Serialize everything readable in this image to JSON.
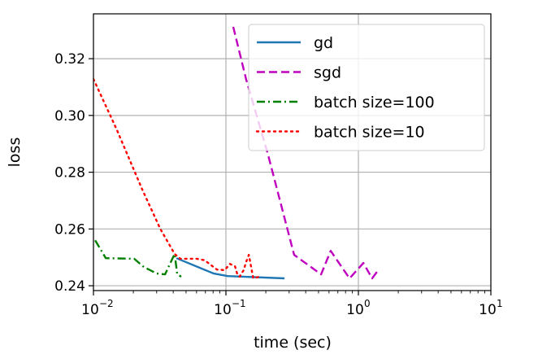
{
  "chart_data": {
    "type": "line",
    "title": "",
    "xlabel": "time (sec)",
    "ylabel": "loss",
    "xscale": "log",
    "xlim": [
      0.01,
      10
    ],
    "ylim": [
      0.2383,
      0.3358
    ],
    "grid": true,
    "legend_position": "top-right",
    "xticks": [
      {
        "value": 0.01,
        "base": "10",
        "exp": "−2"
      },
      {
        "value": 0.1,
        "base": "10",
        "exp": "−1"
      },
      {
        "value": 1,
        "base": "10",
        "exp": "0"
      },
      {
        "value": 10,
        "base": "10",
        "exp": "1"
      }
    ],
    "yticks": [
      {
        "value": 0.24,
        "label": "0.24"
      },
      {
        "value": 0.26,
        "label": "0.26"
      },
      {
        "value": 0.28,
        "label": "0.28"
      },
      {
        "value": 0.3,
        "label": "0.30"
      },
      {
        "value": 0.32,
        "label": "0.32"
      }
    ],
    "series": [
      {
        "name": "gd",
        "color": "#1f77b4",
        "style": "solid",
        "x": [
          0.0423,
          0.081,
          0.103,
          0.277
        ],
        "y": [
          0.2497,
          0.2443,
          0.2434,
          0.2426
        ]
      },
      {
        "name": "sgd",
        "color": "#bf00bf",
        "style": "dashed",
        "x": [
          0.1135,
          0.142,
          0.208,
          0.327,
          0.523,
          0.618,
          0.857,
          1.09,
          1.27,
          1.44
        ],
        "y": [
          0.3312,
          0.3128,
          0.2862,
          0.2509,
          0.244,
          0.2523,
          0.2426,
          0.248,
          0.2426,
          0.246
        ]
      },
      {
        "name": "batch size=100",
        "color": "#008000",
        "style": "dashdot",
        "x": [
          0.0103,
          0.0124,
          0.0203,
          0.024,
          0.0301,
          0.0347,
          0.0394,
          0.041,
          0.0429,
          0.046
        ],
        "y": [
          0.256,
          0.2497,
          0.2495,
          0.2466,
          0.2443,
          0.244,
          0.2495,
          0.2512,
          0.244,
          0.2432
        ]
      },
      {
        "name": "batch size=10",
        "color": "#ff0000",
        "style": "dotted",
        "x": [
          0.01,
          0.015,
          0.0233,
          0.032,
          0.041,
          0.0452,
          0.06,
          0.069,
          0.0855,
          0.098,
          0.107,
          0.117,
          0.122,
          0.127,
          0.136,
          0.142,
          0.149,
          0.153,
          0.157,
          0.161,
          0.186
        ],
        "y": [
          0.3128,
          0.295,
          0.274,
          0.26,
          0.2512,
          0.2495,
          0.2495,
          0.249,
          0.2457,
          0.2455,
          0.2477,
          0.2469,
          0.244,
          0.2432,
          0.2455,
          0.2483,
          0.2509,
          0.248,
          0.2452,
          0.2426,
          0.2434
        ]
      }
    ]
  }
}
